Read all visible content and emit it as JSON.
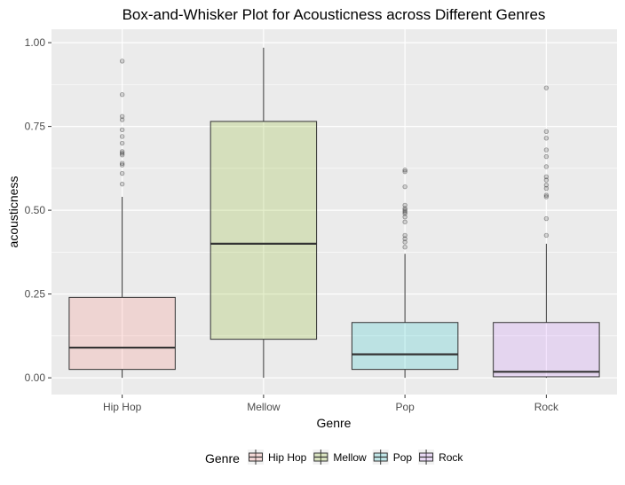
{
  "chart_data": {
    "type": "box",
    "title": "Box-and-Whisker Plot for Acousticness across Different Genres",
    "xlabel": "Genre",
    "ylabel": "acousticness",
    "ylim": [
      -0.05,
      1.04
    ],
    "yticks": [
      0.0,
      0.25,
      0.5,
      0.75,
      1.0
    ],
    "ytick_labels": [
      "0.00",
      "0.25",
      "0.50",
      "0.75",
      "1.00"
    ],
    "grid": true,
    "legend_title": "Genre",
    "legend_position": "bottom",
    "categories": [
      "Hip Hop",
      "Mellow",
      "Pop",
      "Rock"
    ],
    "series": [
      {
        "name": "Hip Hop",
        "color": "#f8766d",
        "whisker_low": 0.0,
        "q1": 0.025,
        "median": 0.09,
        "q3": 0.24,
        "whisker_high": 0.54,
        "outliers": [
          0.945,
          0.845,
          0.78,
          0.77,
          0.74,
          0.72,
          0.7,
          0.675,
          0.67,
          0.665,
          0.64,
          0.635,
          0.61,
          0.578
        ]
      },
      {
        "name": "Mellow",
        "color": "#7cae00",
        "whisker_low": 0.0,
        "q1": 0.115,
        "median": 0.4,
        "q3": 0.765,
        "whisker_high": 0.985,
        "outliers": []
      },
      {
        "name": "Pop",
        "color": "#00bfc4",
        "whisker_low": 0.0,
        "q1": 0.025,
        "median": 0.07,
        "q3": 0.165,
        "whisker_high": 0.37,
        "outliers": [
          0.62,
          0.615,
          0.57,
          0.515,
          0.505,
          0.5,
          0.495,
          0.49,
          0.48,
          0.465,
          0.425,
          0.415,
          0.405,
          0.39
        ]
      },
      {
        "name": "Rock",
        "color": "#c77cff",
        "whisker_low": 0.0,
        "q1": 0.003,
        "median": 0.018,
        "q3": 0.165,
        "whisker_high": 0.4,
        "outliers": [
          0.865,
          0.735,
          0.715,
          0.68,
          0.66,
          0.63,
          0.6,
          0.59,
          0.575,
          0.565,
          0.545,
          0.54,
          0.475,
          0.425
        ]
      }
    ]
  }
}
